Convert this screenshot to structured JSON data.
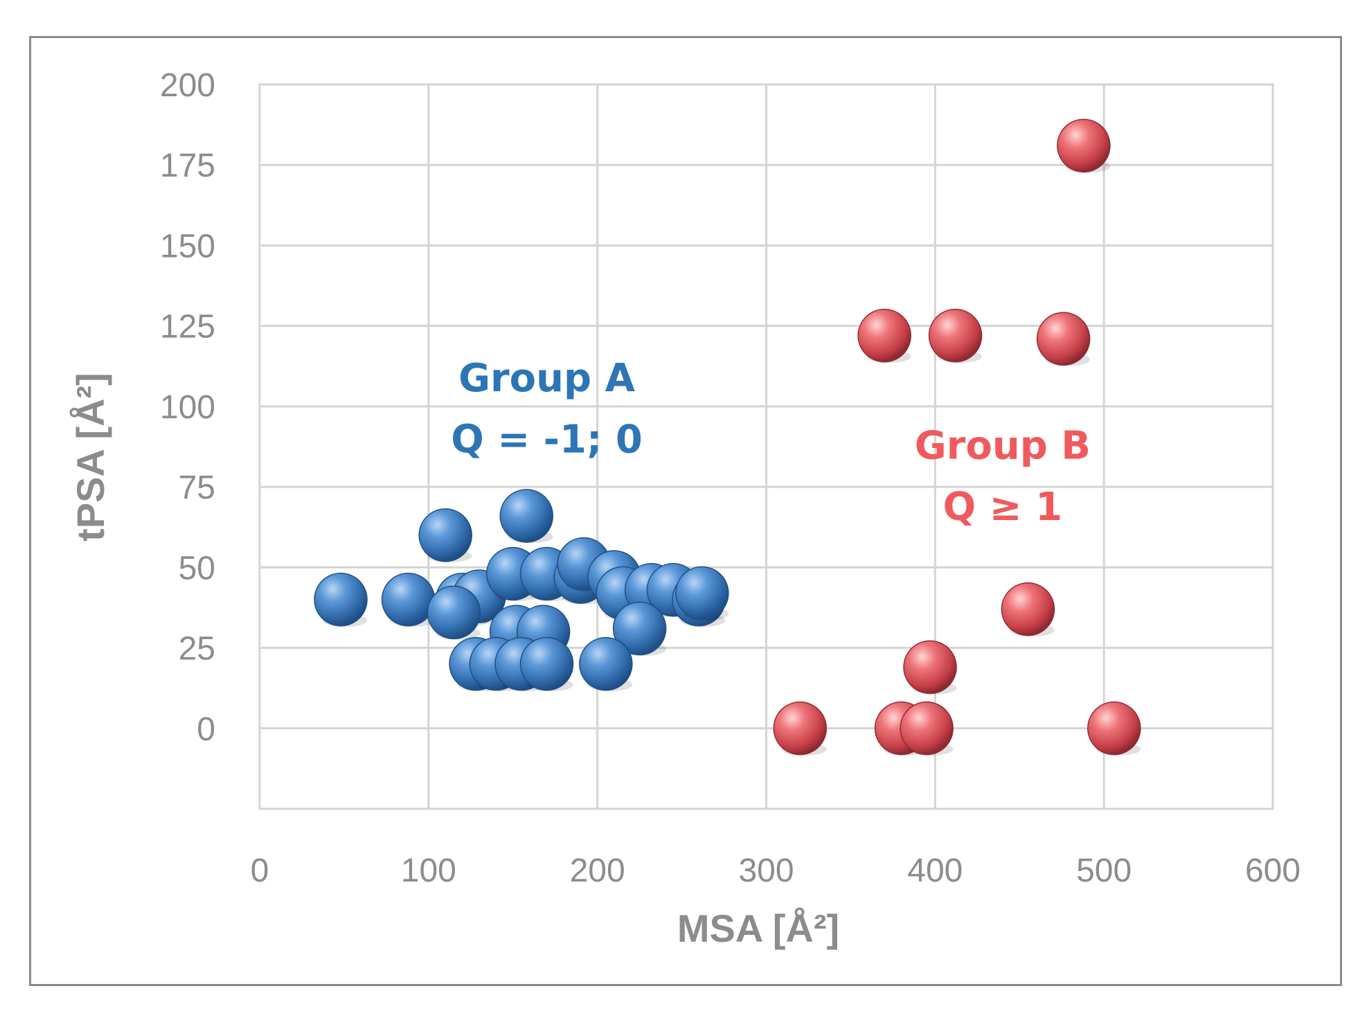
{
  "chart_data": {
    "type": "scatter",
    "title": "",
    "xlabel": "MSA [Å²]",
    "ylabel": "tPSA [Å²]",
    "xlim": [
      0,
      600
    ],
    "ylim": [
      -25,
      200
    ],
    "x_ticks": [
      "0",
      "100",
      "200",
      "300",
      "400",
      "500",
      "600"
    ],
    "y_ticks": [
      "200",
      "175",
      "150",
      "125",
      "100",
      "75",
      "50",
      "25",
      "0"
    ],
    "grid": true,
    "legend": "none",
    "annotations": [
      {
        "id": "group-a",
        "line1": "Group A",
        "line2": "Q = -1; 0",
        "color": "#2e75b6",
        "x": 170,
        "y1": 109,
        "y2": 90
      },
      {
        "id": "group-b",
        "line1": "Group B",
        "line2": "Q ≥ 1",
        "color": "#f05a5e",
        "x": 440,
        "y1": 88,
        "y2": 69
      }
    ],
    "series": [
      {
        "color": "#4a86c8",
        "points": [
          [
            48,
            40
          ],
          [
            88,
            40
          ],
          [
            110,
            60
          ],
          [
            120,
            40
          ],
          [
            130,
            41
          ],
          [
            115,
            36
          ],
          [
            150,
            48
          ],
          [
            158,
            66
          ],
          [
            170,
            48
          ],
          [
            190,
            47
          ],
          [
            192,
            51
          ],
          [
            210,
            47
          ],
          [
            215,
            42
          ],
          [
            232,
            43
          ],
          [
            245,
            43
          ],
          [
            260,
            40
          ],
          [
            262,
            42
          ],
          [
            152,
            30
          ],
          [
            168,
            30
          ],
          [
            225,
            31
          ],
          [
            128,
            20
          ],
          [
            140,
            20
          ],
          [
            155,
            20
          ],
          [
            170,
            20
          ],
          [
            205,
            20
          ]
        ]
      },
      {
        "color": "#e06066",
        "points": [
          [
            488,
            181
          ],
          [
            370,
            122
          ],
          [
            412,
            122
          ],
          [
            476,
            121
          ],
          [
            455,
            37
          ],
          [
            397,
            19
          ],
          [
            320,
            0
          ],
          [
            380,
            0
          ],
          [
            395,
            0
          ],
          [
            506,
            0
          ]
        ]
      }
    ]
  }
}
